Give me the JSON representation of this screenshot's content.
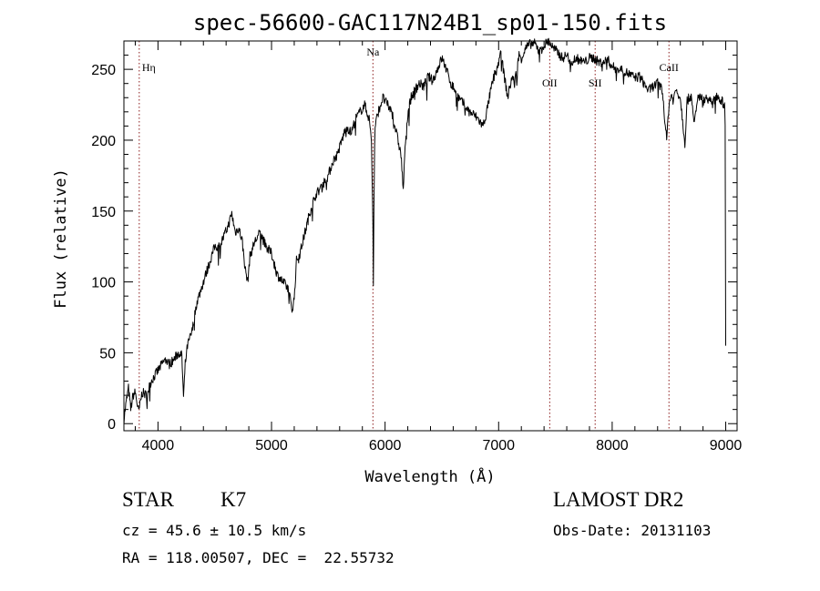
{
  "chart_data": {
    "type": "line",
    "title": "spec-56600-GAC117N24B1_sp01-150.fits",
    "xlabel": "Wavelength (Å)",
    "ylabel": "Flux (relative)",
    "xlim": [
      3700,
      9100
    ],
    "ylim": [
      -5,
      270
    ],
    "xticks": [
      4000,
      5000,
      6000,
      7000,
      8000,
      9000
    ],
    "yticks": [
      0,
      50,
      100,
      150,
      200,
      250
    ],
    "line_color": "#000000",
    "marker_color": "#8b1a1a",
    "series": [
      {
        "x": [
          3700,
          3720,
          3740,
          3760,
          3780,
          3800,
          3830,
          3860,
          3900,
          3940,
          3980,
          4020,
          4060,
          4100,
          4140,
          4180,
          4210,
          4225,
          4240,
          4260,
          4300,
          4340,
          4380,
          4420,
          4460,
          4500,
          4540,
          4580,
          4620,
          4650,
          4680,
          4710,
          4740,
          4770,
          4790,
          4810,
          4850,
          4900,
          4950,
          5000,
          5050,
          5100,
          5150,
          5180,
          5200,
          5220,
          5250,
          5280,
          5310,
          5340,
          5380,
          5420,
          5460,
          5500,
          5540,
          5580,
          5620,
          5660,
          5700,
          5740,
          5780,
          5820,
          5860,
          5880,
          5893,
          5897,
          5902,
          5908,
          5912,
          5940,
          5980,
          6020,
          6060,
          6100,
          6140,
          6160,
          6180,
          6200,
          6230,
          6260,
          6300,
          6340,
          6380,
          6420,
          6460,
          6500,
          6540,
          6580,
          6620,
          6660,
          6700,
          6740,
          6780,
          6820,
          6860,
          6880,
          6900,
          6930,
          6960,
          7000,
          7020,
          7040,
          7060,
          7080,
          7100,
          7120,
          7140,
          7160,
          7180,
          7200,
          7240,
          7280,
          7320,
          7360,
          7400,
          7440,
          7480,
          7520,
          7560,
          7600,
          7640,
          7680,
          7720,
          7760,
          7800,
          7840,
          7880,
          7920,
          7960,
          8000,
          8040,
          8080,
          8120,
          8160,
          8200,
          8240,
          8280,
          8320,
          8360,
          8400,
          8440,
          8480,
          8500,
          8520,
          8540,
          8560,
          8600,
          8640,
          8660,
          8680,
          8700,
          8720,
          8760,
          8800,
          8840,
          8880,
          8920,
          8960,
          8990,
          8995,
          9000
        ],
        "y": [
          3,
          15,
          25,
          10,
          20,
          22,
          8,
          22,
          20,
          30,
          35,
          40,
          45,
          42,
          45,
          50,
          48,
          18,
          42,
          55,
          65,
          85,
          95,
          105,
          115,
          125,
          125,
          132,
          140,
          148,
          135,
          138,
          130,
          108,
          100,
          118,
          128,
          135,
          125,
          120,
          105,
          100,
          95,
          80,
          88,
          115,
          120,
          130,
          140,
          150,
          160,
          165,
          170,
          175,
          185,
          190,
          200,
          210,
          205,
          215,
          220,
          225,
          215,
          200,
          140,
          100,
          150,
          195,
          210,
          220,
          230,
          225,
          220,
          205,
          190,
          165,
          200,
          220,
          230,
          235,
          240,
          238,
          245,
          242,
          250,
          258,
          250,
          240,
          235,
          228,
          225,
          220,
          218,
          215,
          210,
          215,
          222,
          235,
          245,
          255,
          262,
          250,
          240,
          230,
          238,
          245,
          240,
          250,
          260,
          258,
          265,
          268,
          268,
          262,
          267,
          270,
          265,
          262,
          258,
          260,
          255,
          258,
          256,
          255,
          258,
          258,
          255,
          255,
          257,
          252,
          250,
          250,
          248,
          246,
          244,
          245,
          240,
          235,
          238,
          240,
          236,
          200,
          225,
          232,
          228,
          236,
          230,
          198,
          228,
          230,
          232,
          210,
          232,
          228,
          230,
          225,
          232,
          228,
          225,
          210,
          55
        ]
      }
    ],
    "lines": [
      {
        "label": "Hη",
        "x": 3835
      },
      {
        "label": "Na",
        "x": 5893
      },
      {
        "label": "OII",
        "x": 7450
      },
      {
        "label": "SII",
        "x": 7850
      },
      {
        "label": "CaII",
        "x": 8500
      }
    ]
  },
  "info": {
    "class": "STAR",
    "subclass": "K7",
    "survey": "LAMOST DR2",
    "cz": "cz = 45.6 ± 10.5 km/s",
    "obs_date": "Obs-Date: 20131103",
    "radec": "RA = 118.00507, DEC =  22.55732"
  }
}
